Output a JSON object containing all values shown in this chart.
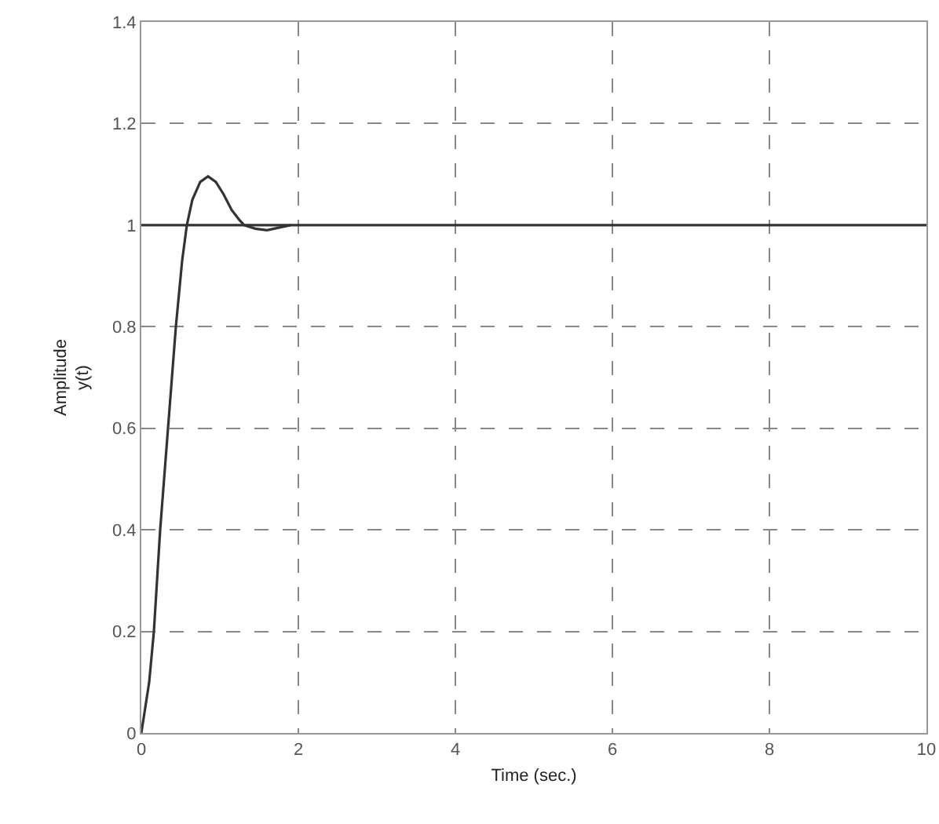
{
  "chart_data": {
    "type": "line",
    "xlabel": "Time (sec.)",
    "ylabel": "Amplitude\ny(t)",
    "series": [
      {
        "color": "#333333",
        "x": [
          0,
          0.05,
          0.1,
          0.16,
          0.24,
          0.34,
          0.44,
          0.52,
          0.58,
          0.65,
          0.75,
          0.85,
          0.95,
          1.05,
          1.15,
          1.25,
          1.31,
          1.45,
          1.6,
          1.75,
          1.9
        ],
        "values": [
          0,
          0.05,
          0.1,
          0.2,
          0.4,
          0.6,
          0.8,
          0.93,
          1.0,
          1.05,
          1.085,
          1.096,
          1.085,
          1.06,
          1.03,
          1.01,
          1.0,
          0.993,
          0.99,
          0.995,
          1.0
        ]
      }
    ],
    "xlim": [
      0,
      10
    ],
    "xticks": [
      0,
      2,
      4,
      6,
      8,
      10
    ],
    "ylim": [
      0,
      1.4
    ],
    "yticks": [
      0,
      0.2,
      0.4,
      0.6,
      0.8,
      1,
      1.2,
      1.4
    ],
    "ref_lines": [
      {
        "axis": "y",
        "value": 1,
        "color": "#333333",
        "line_style": "solid"
      }
    ],
    "grid": true,
    "line_style": "solid",
    "marker": "none"
  }
}
